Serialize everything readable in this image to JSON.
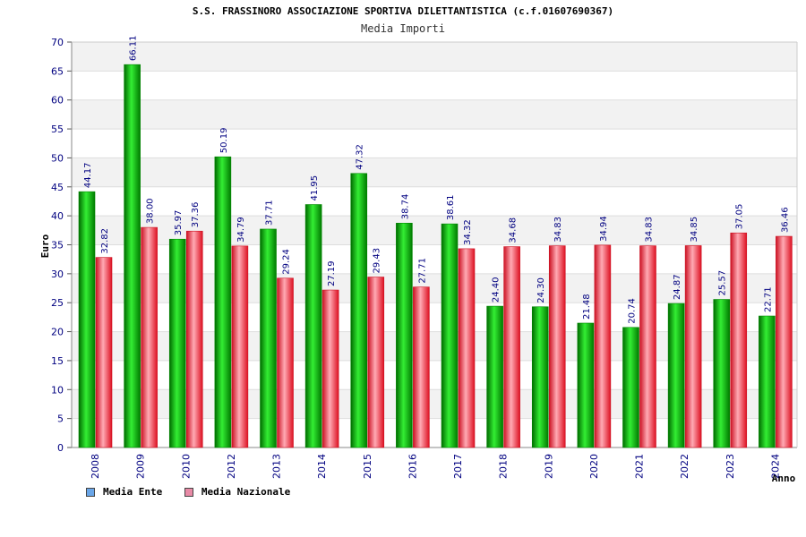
{
  "chart_data": {
    "type": "bar",
    "title": "S.S. FRASSINORO ASSOCIAZIONE SPORTIVA DILETTANTISTICA (c.f.01607690367)",
    "subtitle": "Media Importi",
    "xlabel": "Anno",
    "ylabel": "Euro",
    "ylim": [
      0,
      70
    ],
    "yticks": [
      0,
      5,
      10,
      15,
      20,
      25,
      30,
      35,
      40,
      45,
      50,
      55,
      60,
      65,
      70
    ],
    "grid": true,
    "legend_position": "bottom-left",
    "categories": [
      "2008",
      "2009",
      "2010",
      "2012",
      "2013",
      "2014",
      "2015",
      "2016",
      "2017",
      "2018",
      "2019",
      "2020",
      "2021",
      "2022",
      "2023",
      "2024"
    ],
    "series": [
      {
        "name": "Media Ente",
        "color": "#00aa00",
        "legend_color": "#6aa6e8",
        "values": [
          44.17,
          66.11,
          35.97,
          50.19,
          37.71,
          41.95,
          47.32,
          38.74,
          38.61,
          24.4,
          24.3,
          21.48,
          20.74,
          24.87,
          25.57,
          22.71
        ],
        "labels": [
          "44.17",
          "66.11",
          "35.97",
          "50.19",
          "37.71",
          "41.95",
          "47.32",
          "38.74",
          "38.61",
          "24.40",
          "24.30",
          "21.48",
          "20.74",
          "24.87",
          "25.57",
          "22.71"
        ]
      },
      {
        "name": "Media Nazionale",
        "color": "#ee2233",
        "legend_color": "#e88aa6",
        "values": [
          32.82,
          38.0,
          37.36,
          34.79,
          29.24,
          27.19,
          29.43,
          27.71,
          34.32,
          34.68,
          34.83,
          34.94,
          34.83,
          34.85,
          37.05,
          36.46
        ],
        "labels": [
          "32.82",
          "38.00",
          "37.36",
          "34.79",
          "29.24",
          "27.19",
          "29.43",
          "27.71",
          "34.32",
          "34.68",
          "34.83",
          "34.94",
          "34.83",
          "34.85",
          "37.05",
          "36.46"
        ]
      }
    ]
  }
}
